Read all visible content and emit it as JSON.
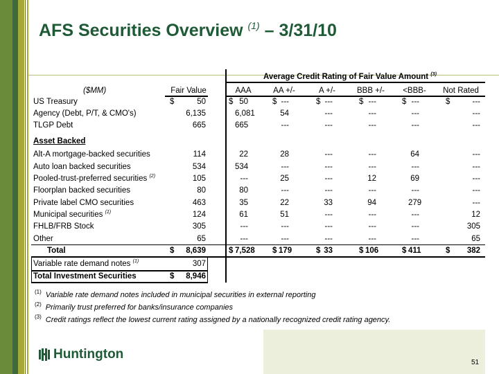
{
  "title": {
    "main": "AFS Securities Overview",
    "sup": "(1)",
    "date": "– 3/31/10"
  },
  "table": {
    "group_header": "Average Credit Rating of Fair Value Amount",
    "group_sup": "(3)",
    "units": "($MM)",
    "columns": [
      "Fair Value",
      "AAA",
      "AA +/-",
      "A +/-",
      "BBB +/-",
      "<BBB-",
      "Not Rated"
    ],
    "rows": [
      {
        "label": "US Treasury",
        "dollars": true,
        "values": [
          "50",
          "50",
          "---",
          "---",
          "---",
          "---",
          "---"
        ]
      },
      {
        "label": "Agency (Debt, P/T, & CMO's)",
        "values": [
          "6,135",
          "6,081",
          "54",
          "---",
          "---",
          "---",
          "---"
        ]
      },
      {
        "label": "TLGP Debt",
        "values": [
          "665",
          "665",
          "---",
          "---",
          "---",
          "---",
          "---"
        ]
      },
      {
        "label": "Asset Backed",
        "section": true
      },
      {
        "label": "Alt-A mortgage-backed securities",
        "values": [
          "114",
          "22",
          "28",
          "---",
          "---",
          "64",
          "---"
        ]
      },
      {
        "label": "Auto loan backed securities",
        "values": [
          "534",
          "534",
          "---",
          "---",
          "---",
          "---",
          "---"
        ]
      },
      {
        "label": "Pooled-trust-preferred securities",
        "sup": "(2)",
        "values": [
          "105",
          "---",
          "25",
          "---",
          "12",
          "69",
          "---"
        ]
      },
      {
        "label": "Floorplan backed securities",
        "values": [
          "80",
          "80",
          "---",
          "---",
          "---",
          "---",
          "---"
        ]
      },
      {
        "label": "Private label CMO securities",
        "values": [
          "463",
          "35",
          "22",
          "33",
          "94",
          "279",
          "---"
        ]
      },
      {
        "label": "Municipal securities",
        "sup": "(1)",
        "values": [
          "124",
          "61",
          "51",
          "---",
          "---",
          "---",
          "12"
        ]
      },
      {
        "label": "FHLB/FRB Stock",
        "values": [
          "305",
          "---",
          "---",
          "---",
          "---",
          "---",
          "305"
        ]
      },
      {
        "label": "Other",
        "values": [
          "65",
          "---",
          "---",
          "---",
          "---",
          "---",
          "65"
        ]
      },
      {
        "label": "Total",
        "total": true,
        "dollars": true,
        "values": [
          "8,639",
          "7,528",
          "179",
          "33",
          "106",
          "411",
          "382"
        ]
      },
      {
        "label": "Variable rate demand notes",
        "sup": "(1)",
        "values": [
          "307"
        ]
      },
      {
        "label": "Total Investment Securities",
        "grand": true,
        "dollars": true,
        "values": [
          "8,946"
        ]
      }
    ],
    "currency_symbol": "$"
  },
  "footnotes": [
    {
      "mark": "(1)",
      "text": "Variable rate demand notes included in municipal securities in external reporting"
    },
    {
      "mark": "(2)",
      "text": "Primarily trust preferred for banks/insurance companies"
    },
    {
      "mark": "(3)",
      "text": "Credit ratings reflect the lowest current rating assigned by a nationally recognized credit rating agency."
    }
  ],
  "logo": "Huntington",
  "page_number": "51",
  "colors": {
    "brand_green": "#1f5a36",
    "stripe_green": "#6a8c3a",
    "stripe_dark": "#3f6b3b",
    "stripe_olive": "#a6a838"
  }
}
